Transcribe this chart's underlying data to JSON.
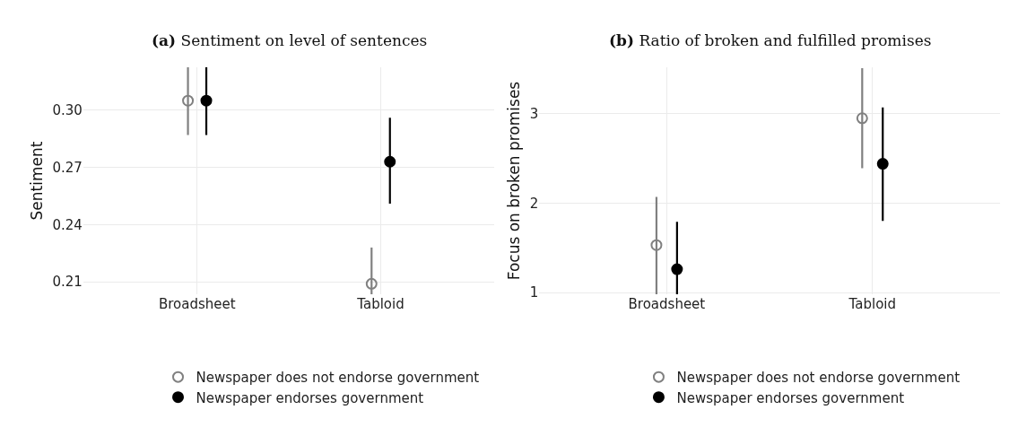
{
  "chart_data": [
    {
      "type": "scatter",
      "title": "(a) Sentiment on level of sentences",
      "ylabel": "Sentiment",
      "categories": [
        "Broadsheet",
        "Tabloid"
      ],
      "ylim": [
        0.2035,
        0.3225
      ],
      "yticks": [
        {
          "value": 0.21,
          "label": "0.21"
        },
        {
          "value": 0.24,
          "label": "0.24"
        },
        {
          "value": 0.27,
          "label": "0.27"
        },
        {
          "value": 0.3,
          "label": "0.30"
        }
      ],
      "grid": true,
      "legend": "bottom",
      "marker": "circle",
      "series": [
        {
          "name": "Newspaper does not endorse government",
          "color": "#808080",
          "values": [
            0.305,
            0.209
          ],
          "errors": [
            [
              0.287,
              0.3225
            ],
            [
              0.2035,
              0.228
            ]
          ]
        },
        {
          "name": "Newspaper endorses government",
          "color": "#000000",
          "values": [
            0.305,
            0.273
          ],
          "errors": [
            [
              0.287,
              0.3225
            ],
            [
              0.251,
              0.296
            ]
          ]
        }
      ]
    },
    {
      "type": "scatter",
      "title": "(b) Ratio of broken and fulfilled promises",
      "ylabel": "Focus on broken promises",
      "categories": [
        "Broadsheet",
        "Tabloid"
      ],
      "ylim": [
        0.98,
        3.52
      ],
      "yticks": [
        1,
        2,
        3
      ],
      "grid": true,
      "legend": "bottom",
      "marker": "circle",
      "series": [
        {
          "name": "Newspaper does not endorse government",
          "color": "#808080",
          "values": [
            1.53,
            2.95
          ],
          "errors": [
            [
              0.98,
              2.07
            ],
            [
              2.39,
              3.51
            ]
          ]
        },
        {
          "name": "Newspaper endorses government",
          "color": "#000000",
          "values": [
            1.26,
            2.44
          ],
          "errors": [
            [
              0.98,
              1.79
            ],
            [
              1.8,
              3.07
            ]
          ]
        }
      ]
    }
  ]
}
